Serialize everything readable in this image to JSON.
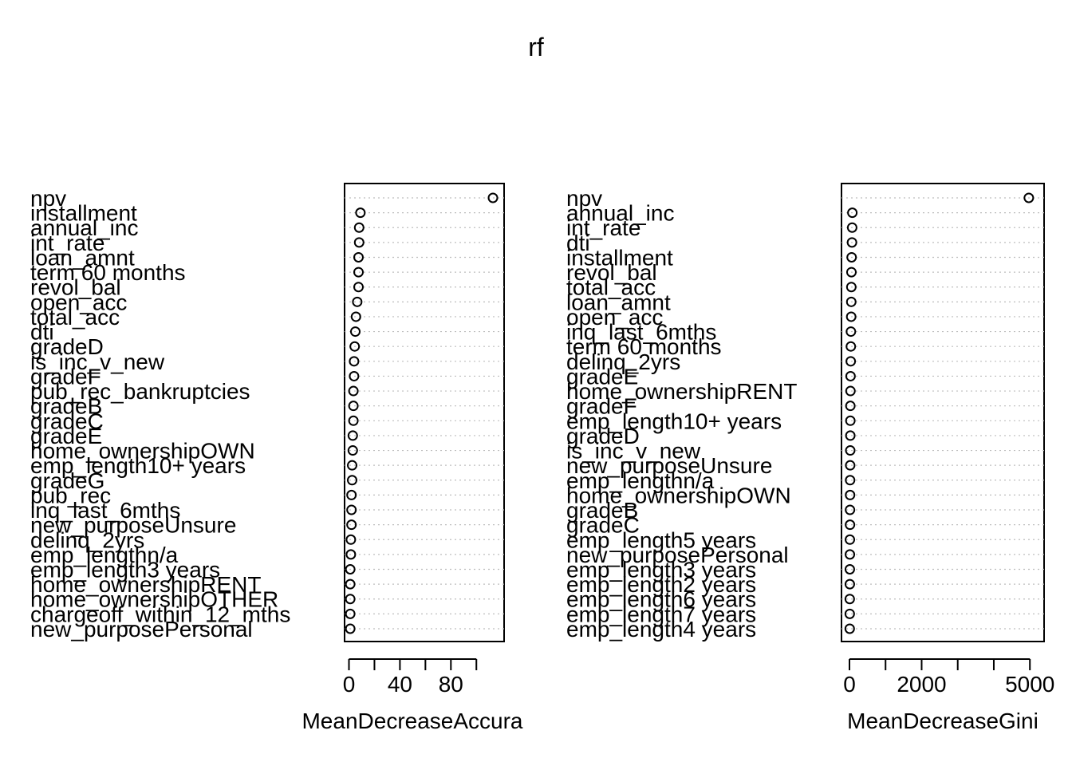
{
  "title": "rf",
  "chart_data": [
    {
      "type": "scatter",
      "xlabel": "MeanDecreaseAccura",
      "xlim": [
        0,
        118
      ],
      "xticks": [
        0,
        20,
        40,
        60,
        80,
        100
      ],
      "xtick_labels": [
        "0",
        "",
        "40",
        "",
        "80",
        ""
      ],
      "grid": true,
      "categories": [
        "npv",
        "installment",
        "annual_inc",
        "int_rate",
        "loan_amnt",
        "term 60 months",
        "revol_bal",
        "open_acc",
        "total_acc",
        "dti",
        "gradeD",
        "is_inc_v_new",
        "gradeF",
        "pub_rec_bankruptcies",
        "gradeB",
        "gradeC",
        "gradeE",
        "home_ownershipOWN",
        "emp_length10+ years",
        "gradeG",
        "pub_rec",
        "inq_last_6mths",
        "new_purposeUnsure",
        "delinq_2yrs",
        "emp_lengthn/a",
        "emp_length3 years",
        "home_ownershipRENT",
        "home_ownershipOTHER",
        "chargeoff_within_12_mths",
        "new_purposePersonal"
      ],
      "values": [
        113,
        9,
        8,
        8,
        7.5,
        7.5,
        7.5,
        6.5,
        5.5,
        5,
        4.5,
        4,
        4,
        3.5,
        3.5,
        3.5,
        3,
        3,
        2.5,
        2.5,
        2,
        2,
        2,
        1.5,
        1.5,
        1,
        1,
        1,
        1,
        1
      ]
    },
    {
      "type": "scatter",
      "xlabel": "MeanDecreaseGini",
      "xlim": [
        0,
        5150
      ],
      "xticks": [
        0,
        1000,
        2000,
        3000,
        4000,
        5000
      ],
      "xtick_labels": [
        "0",
        "",
        "2000",
        "",
        "",
        "5000"
      ],
      "grid": true,
      "categories": [
        "npv",
        "annual_inc",
        "int_rate",
        "dti",
        "installment",
        "revol_bal",
        "total_acc",
        "loan_amnt",
        "open_acc",
        "inq_last_6mths",
        "term 60 months",
        "delinq_2yrs",
        "gradeE",
        "home_ownershipRENT",
        "gradeF",
        "emp_length10+ years",
        "gradeD",
        "is_inc_v_new",
        "new_purposeUnsure",
        "emp_lengthn/a",
        "home_ownershipOWN",
        "gradeB",
        "gradeC",
        "emp_length5 years",
        "new_purposePersonal",
        "emp_length3 years",
        "emp_length2 years",
        "emp_length6 years",
        "emp_length7 years",
        "emp_length4 years"
      ],
      "values": [
        4970,
        80,
        75,
        70,
        60,
        55,
        52,
        50,
        48,
        40,
        38,
        35,
        30,
        28,
        25,
        25,
        24,
        22,
        20,
        18,
        17,
        15,
        15,
        12,
        12,
        10,
        10,
        8,
        8,
        7
      ]
    }
  ]
}
